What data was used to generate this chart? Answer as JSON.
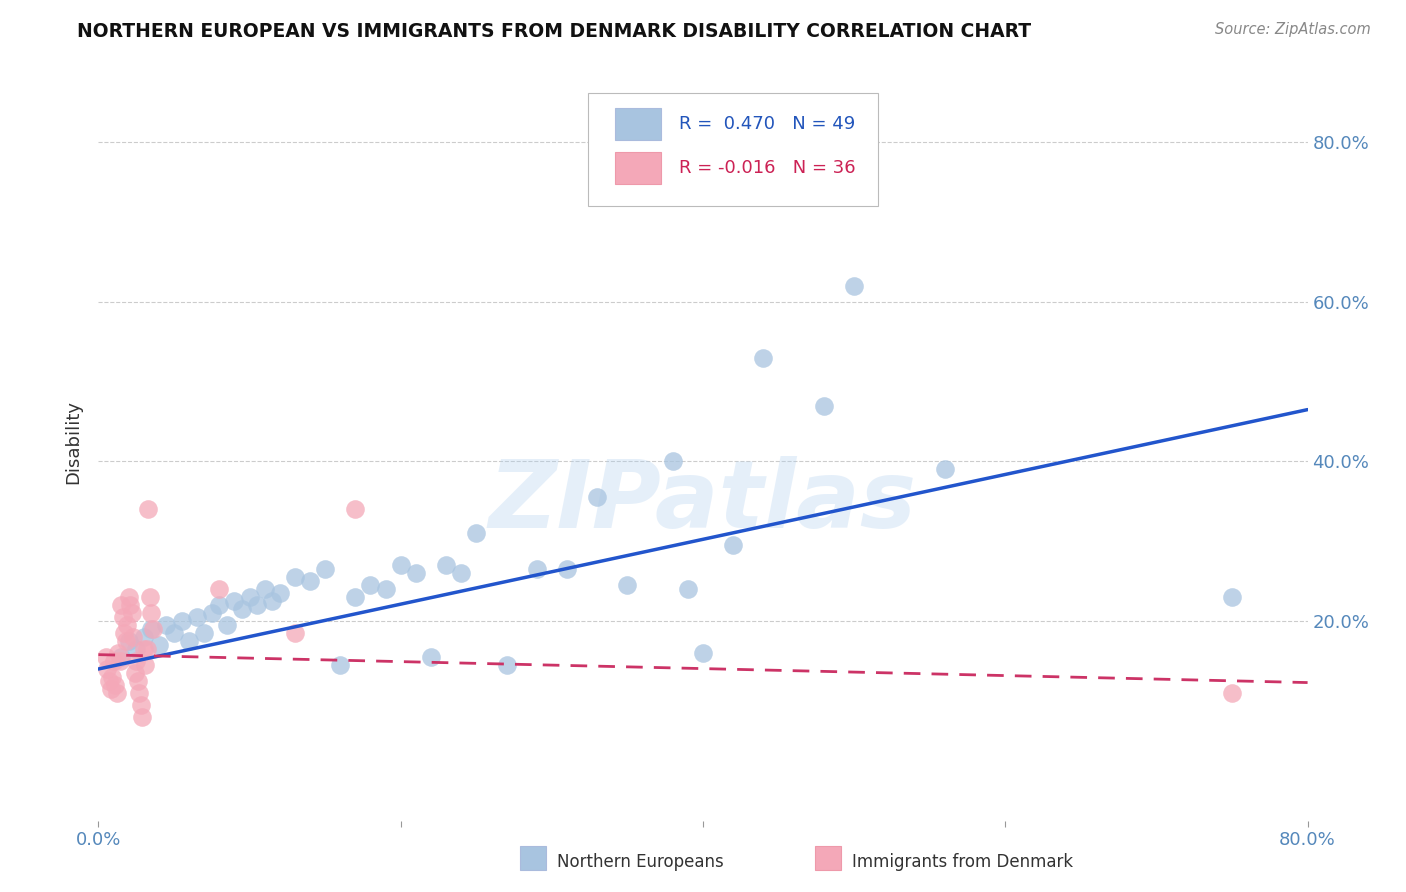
{
  "title": "NORTHERN EUROPEAN VS IMMIGRANTS FROM DENMARK DISABILITY CORRELATION CHART",
  "source": "Source: ZipAtlas.com",
  "ylabel": "Disability",
  "xlim": [
    0.0,
    0.8
  ],
  "ylim": [
    -0.05,
    0.9
  ],
  "blue_color": "#A8C4E0",
  "pink_color": "#F4A8B8",
  "blue_fill": "#6699CC",
  "pink_fill": "#EE8899",
  "line_blue": "#2255CC",
  "line_pink": "#CC3366",
  "blue_scatter_x": [
    0.015,
    0.02,
    0.025,
    0.03,
    0.035,
    0.04,
    0.045,
    0.05,
    0.055,
    0.06,
    0.065,
    0.07,
    0.075,
    0.08,
    0.085,
    0.09,
    0.095,
    0.1,
    0.105,
    0.11,
    0.115,
    0.12,
    0.13,
    0.14,
    0.15,
    0.16,
    0.17,
    0.18,
    0.19,
    0.2,
    0.21,
    0.22,
    0.23,
    0.24,
    0.25,
    0.27,
    0.29,
    0.31,
    0.33,
    0.35,
    0.38,
    0.39,
    0.4,
    0.42,
    0.44,
    0.48,
    0.5,
    0.56,
    0.75
  ],
  "blue_scatter_y": [
    0.155,
    0.175,
    0.165,
    0.18,
    0.19,
    0.17,
    0.195,
    0.185,
    0.2,
    0.175,
    0.205,
    0.185,
    0.21,
    0.22,
    0.195,
    0.225,
    0.215,
    0.23,
    0.22,
    0.24,
    0.225,
    0.235,
    0.255,
    0.25,
    0.265,
    0.145,
    0.23,
    0.245,
    0.24,
    0.27,
    0.26,
    0.155,
    0.27,
    0.26,
    0.31,
    0.145,
    0.265,
    0.265,
    0.355,
    0.245,
    0.4,
    0.24,
    0.16,
    0.295,
    0.53,
    0.47,
    0.62,
    0.39,
    0.23
  ],
  "pink_scatter_x": [
    0.005,
    0.006,
    0.007,
    0.008,
    0.009,
    0.01,
    0.011,
    0.012,
    0.013,
    0.014,
    0.015,
    0.016,
    0.017,
    0.018,
    0.019,
    0.02,
    0.021,
    0.022,
    0.023,
    0.024,
    0.025,
    0.026,
    0.027,
    0.028,
    0.029,
    0.03,
    0.031,
    0.032,
    0.033,
    0.034,
    0.035,
    0.036,
    0.08,
    0.13,
    0.17,
    0.75
  ],
  "pink_scatter_y": [
    0.155,
    0.14,
    0.125,
    0.115,
    0.13,
    0.15,
    0.12,
    0.11,
    0.16,
    0.15,
    0.22,
    0.205,
    0.185,
    0.175,
    0.195,
    0.23,
    0.22,
    0.21,
    0.18,
    0.135,
    0.15,
    0.125,
    0.11,
    0.095,
    0.08,
    0.165,
    0.145,
    0.165,
    0.34,
    0.23,
    0.21,
    0.19,
    0.24,
    0.185,
    0.34,
    0.11
  ],
  "blue_line_x": [
    0.0,
    0.8
  ],
  "blue_line_y": [
    0.14,
    0.465
  ],
  "pink_line_x": [
    0.0,
    0.8
  ],
  "pink_line_y": [
    0.158,
    0.123
  ],
  "legend1_r": "R =  0.470",
  "legend1_n": "N = 49",
  "legend2_r": "R = -0.016",
  "legend2_n": "N = 36",
  "label_blue": "Northern Europeans",
  "label_pink": "Immigrants from Denmark",
  "grid_color": "#CCCCCC",
  "watermark_text": "ZIPatlas"
}
